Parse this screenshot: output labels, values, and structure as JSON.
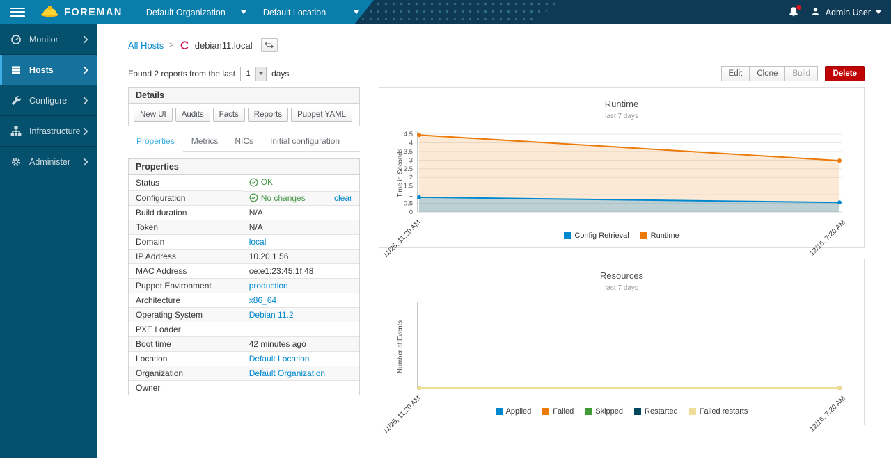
{
  "navbar": {
    "brand": "FOREMAN",
    "organization": "Default Organization",
    "location": "Default Location",
    "user": "Admin User"
  },
  "sidebar": {
    "items": [
      {
        "id": "monitor",
        "label": "Monitor",
        "icon": "gauge-icon",
        "active": false
      },
      {
        "id": "hosts",
        "label": "Hosts",
        "icon": "hosts-icon",
        "active": true
      },
      {
        "id": "configure",
        "label": "Configure",
        "icon": "wrench-icon",
        "active": false
      },
      {
        "id": "infrastructure",
        "label": "Infrastructure",
        "icon": "sitemap-icon",
        "active": false
      },
      {
        "id": "administer",
        "label": "Administer",
        "icon": "gear-icon",
        "active": false
      }
    ]
  },
  "breadcrumb": {
    "parent": "All Hosts",
    "current": "debian11.local"
  },
  "reports_bar": {
    "prefix": "Found 2 reports from the last",
    "select_value": "1",
    "suffix": "days"
  },
  "actions": {
    "edit": "Edit",
    "clone": "Clone",
    "build": "Build",
    "delete": "Delete"
  },
  "details": {
    "title": "Details",
    "buttons": [
      "New UI",
      "Audits",
      "Facts",
      "Reports",
      "Puppet YAML"
    ],
    "tabs": [
      {
        "label": "Properties",
        "active": true
      },
      {
        "label": "Metrics",
        "active": false
      },
      {
        "label": "NICs",
        "active": false
      },
      {
        "label": "Initial configuration",
        "active": false
      }
    ]
  },
  "properties": {
    "title": "Properties",
    "rows": [
      {
        "label": "Status",
        "type": "status",
        "value": "OK"
      },
      {
        "label": "Configuration",
        "type": "status",
        "value": "No changes",
        "action": "clear"
      },
      {
        "label": "Build duration",
        "type": "text",
        "value": "N/A"
      },
      {
        "label": "Token",
        "type": "text",
        "value": "N/A"
      },
      {
        "label": "Domain",
        "type": "link",
        "value": "local"
      },
      {
        "label": "IP Address",
        "type": "text",
        "value": "10.20.1.56"
      },
      {
        "label": "MAC Address",
        "type": "text",
        "value": "ce:e1:23:45:1f:48"
      },
      {
        "label": "Puppet Environment",
        "type": "link",
        "value": "production"
      },
      {
        "label": "Architecture",
        "type": "link",
        "value": "x86_64"
      },
      {
        "label": "Operating System",
        "type": "link",
        "value": "Debian 11.2"
      },
      {
        "label": "PXE Loader",
        "type": "text",
        "value": ""
      },
      {
        "label": "Boot time",
        "type": "text",
        "value": "42 minutes ago"
      },
      {
        "label": "Location",
        "type": "link",
        "value": "Default Location"
      },
      {
        "label": "Organization",
        "type": "link",
        "value": "Default Organization"
      },
      {
        "label": "Owner",
        "type": "text",
        "value": ""
      }
    ]
  },
  "colors": {
    "link": "#0088ce",
    "success_green": "#459745",
    "delete_red": "#c00405",
    "active_tab": "#3bafe0"
  },
  "chart_data": [
    {
      "type": "area",
      "title": "Runtime",
      "subtitle": "last 7 days",
      "ylabel": "Time in Seconds",
      "xlabel": "",
      "ylim": [
        0,
        4.5
      ],
      "yticks": [
        0,
        0.5,
        1,
        1.5,
        2,
        2.5,
        3,
        3.5,
        4,
        4.5
      ],
      "x_labels": [
        "11/25, 11:20 AM",
        "12/16, 7:20 AM"
      ],
      "grid": true,
      "legend_position": "bottom",
      "series": [
        {
          "name": "Config Retrieval",
          "color": "#0088ce",
          "values": [
            0.85,
            0.55
          ]
        },
        {
          "name": "Runtime",
          "color": "#ec7a08",
          "values": [
            4.45,
            2.97
          ]
        }
      ]
    },
    {
      "type": "area",
      "title": "Resources",
      "subtitle": "last 7 days",
      "ylabel": "Number of Events",
      "xlabel": "",
      "ylim": [
        0,
        1
      ],
      "yticks": [],
      "x_labels": [
        "11/25, 11:20 AM",
        "12/16, 7:20 AM"
      ],
      "grid": false,
      "legend_position": "bottom",
      "series": [
        {
          "name": "Applied",
          "color": "#0088ce",
          "values": [
            0,
            0
          ]
        },
        {
          "name": "Failed",
          "color": "#ec7a08",
          "values": [
            0,
            0
          ]
        },
        {
          "name": "Skipped",
          "color": "#3f9c35",
          "values": [
            0,
            0
          ]
        },
        {
          "name": "Restarted",
          "color": "#00485e",
          "values": [
            0,
            0
          ]
        },
        {
          "name": "Failed restarts",
          "color": "#f0de96",
          "values": [
            0,
            0
          ]
        }
      ]
    }
  ]
}
